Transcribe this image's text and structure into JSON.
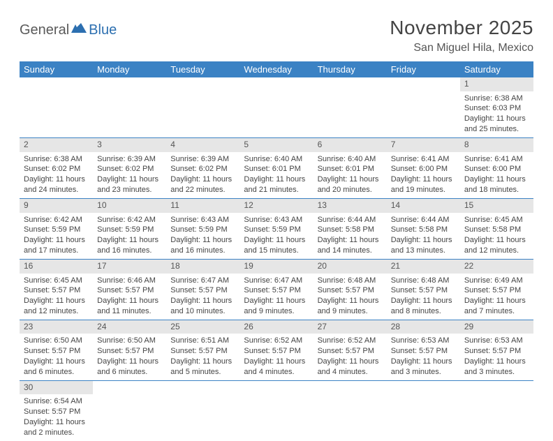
{
  "logo": {
    "part1": "General",
    "part2": "Blue"
  },
  "title": "November 2025",
  "location": "San Miguel Hila, Mexico",
  "colors": {
    "header_bg": "#3b82c4",
    "header_text": "#ffffff",
    "daynum_bg": "#e6e6e6",
    "border": "#3b82c4",
    "logo_gray": "#5a5a5a",
    "logo_blue": "#2c6fb0"
  },
  "weekdays": [
    "Sunday",
    "Monday",
    "Tuesday",
    "Wednesday",
    "Thursday",
    "Friday",
    "Saturday"
  ],
  "grid": [
    [
      null,
      null,
      null,
      null,
      null,
      null,
      {
        "n": "1",
        "sr": "Sunrise: 6:38 AM",
        "ss": "Sunset: 6:03 PM",
        "d1": "Daylight: 11 hours",
        "d2": "and 25 minutes."
      }
    ],
    [
      {
        "n": "2",
        "sr": "Sunrise: 6:38 AM",
        "ss": "Sunset: 6:02 PM",
        "d1": "Daylight: 11 hours",
        "d2": "and 24 minutes."
      },
      {
        "n": "3",
        "sr": "Sunrise: 6:39 AM",
        "ss": "Sunset: 6:02 PM",
        "d1": "Daylight: 11 hours",
        "d2": "and 23 minutes."
      },
      {
        "n": "4",
        "sr": "Sunrise: 6:39 AM",
        "ss": "Sunset: 6:02 PM",
        "d1": "Daylight: 11 hours",
        "d2": "and 22 minutes."
      },
      {
        "n": "5",
        "sr": "Sunrise: 6:40 AM",
        "ss": "Sunset: 6:01 PM",
        "d1": "Daylight: 11 hours",
        "d2": "and 21 minutes."
      },
      {
        "n": "6",
        "sr": "Sunrise: 6:40 AM",
        "ss": "Sunset: 6:01 PM",
        "d1": "Daylight: 11 hours",
        "d2": "and 20 minutes."
      },
      {
        "n": "7",
        "sr": "Sunrise: 6:41 AM",
        "ss": "Sunset: 6:00 PM",
        "d1": "Daylight: 11 hours",
        "d2": "and 19 minutes."
      },
      {
        "n": "8",
        "sr": "Sunrise: 6:41 AM",
        "ss": "Sunset: 6:00 PM",
        "d1": "Daylight: 11 hours",
        "d2": "and 18 minutes."
      }
    ],
    [
      {
        "n": "9",
        "sr": "Sunrise: 6:42 AM",
        "ss": "Sunset: 5:59 PM",
        "d1": "Daylight: 11 hours",
        "d2": "and 17 minutes."
      },
      {
        "n": "10",
        "sr": "Sunrise: 6:42 AM",
        "ss": "Sunset: 5:59 PM",
        "d1": "Daylight: 11 hours",
        "d2": "and 16 minutes."
      },
      {
        "n": "11",
        "sr": "Sunrise: 6:43 AM",
        "ss": "Sunset: 5:59 PM",
        "d1": "Daylight: 11 hours",
        "d2": "and 16 minutes."
      },
      {
        "n": "12",
        "sr": "Sunrise: 6:43 AM",
        "ss": "Sunset: 5:59 PM",
        "d1": "Daylight: 11 hours",
        "d2": "and 15 minutes."
      },
      {
        "n": "13",
        "sr": "Sunrise: 6:44 AM",
        "ss": "Sunset: 5:58 PM",
        "d1": "Daylight: 11 hours",
        "d2": "and 14 minutes."
      },
      {
        "n": "14",
        "sr": "Sunrise: 6:44 AM",
        "ss": "Sunset: 5:58 PM",
        "d1": "Daylight: 11 hours",
        "d2": "and 13 minutes."
      },
      {
        "n": "15",
        "sr": "Sunrise: 6:45 AM",
        "ss": "Sunset: 5:58 PM",
        "d1": "Daylight: 11 hours",
        "d2": "and 12 minutes."
      }
    ],
    [
      {
        "n": "16",
        "sr": "Sunrise: 6:45 AM",
        "ss": "Sunset: 5:57 PM",
        "d1": "Daylight: 11 hours",
        "d2": "and 12 minutes."
      },
      {
        "n": "17",
        "sr": "Sunrise: 6:46 AM",
        "ss": "Sunset: 5:57 PM",
        "d1": "Daylight: 11 hours",
        "d2": "and 11 minutes."
      },
      {
        "n": "18",
        "sr": "Sunrise: 6:47 AM",
        "ss": "Sunset: 5:57 PM",
        "d1": "Daylight: 11 hours",
        "d2": "and 10 minutes."
      },
      {
        "n": "19",
        "sr": "Sunrise: 6:47 AM",
        "ss": "Sunset: 5:57 PM",
        "d1": "Daylight: 11 hours",
        "d2": "and 9 minutes."
      },
      {
        "n": "20",
        "sr": "Sunrise: 6:48 AM",
        "ss": "Sunset: 5:57 PM",
        "d1": "Daylight: 11 hours",
        "d2": "and 9 minutes."
      },
      {
        "n": "21",
        "sr": "Sunrise: 6:48 AM",
        "ss": "Sunset: 5:57 PM",
        "d1": "Daylight: 11 hours",
        "d2": "and 8 minutes."
      },
      {
        "n": "22",
        "sr": "Sunrise: 6:49 AM",
        "ss": "Sunset: 5:57 PM",
        "d1": "Daylight: 11 hours",
        "d2": "and 7 minutes."
      }
    ],
    [
      {
        "n": "23",
        "sr": "Sunrise: 6:50 AM",
        "ss": "Sunset: 5:57 PM",
        "d1": "Daylight: 11 hours",
        "d2": "and 6 minutes."
      },
      {
        "n": "24",
        "sr": "Sunrise: 6:50 AM",
        "ss": "Sunset: 5:57 PM",
        "d1": "Daylight: 11 hours",
        "d2": "and 6 minutes."
      },
      {
        "n": "25",
        "sr": "Sunrise: 6:51 AM",
        "ss": "Sunset: 5:57 PM",
        "d1": "Daylight: 11 hours",
        "d2": "and 5 minutes."
      },
      {
        "n": "26",
        "sr": "Sunrise: 6:52 AM",
        "ss": "Sunset: 5:57 PM",
        "d1": "Daylight: 11 hours",
        "d2": "and 4 minutes."
      },
      {
        "n": "27",
        "sr": "Sunrise: 6:52 AM",
        "ss": "Sunset: 5:57 PM",
        "d1": "Daylight: 11 hours",
        "d2": "and 4 minutes."
      },
      {
        "n": "28",
        "sr": "Sunrise: 6:53 AM",
        "ss": "Sunset: 5:57 PM",
        "d1": "Daylight: 11 hours",
        "d2": "and 3 minutes."
      },
      {
        "n": "29",
        "sr": "Sunrise: 6:53 AM",
        "ss": "Sunset: 5:57 PM",
        "d1": "Daylight: 11 hours",
        "d2": "and 3 minutes."
      }
    ],
    [
      {
        "n": "30",
        "sr": "Sunrise: 6:54 AM",
        "ss": "Sunset: 5:57 PM",
        "d1": "Daylight: 11 hours",
        "d2": "and 2 minutes."
      },
      null,
      null,
      null,
      null,
      null,
      null
    ]
  ]
}
